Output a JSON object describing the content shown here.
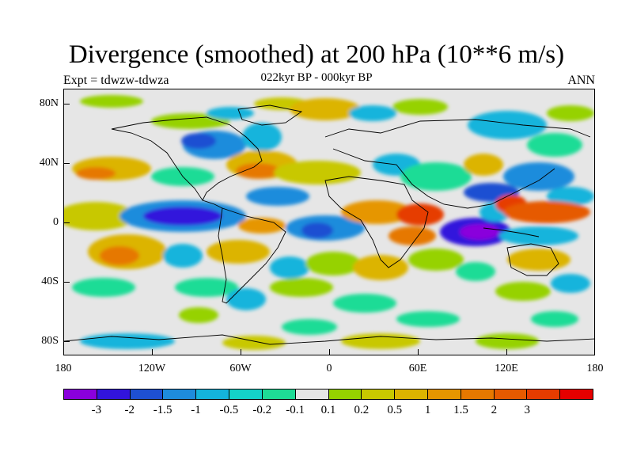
{
  "title": "Divergence (smoothed) at 200 hPa (10**6 m/s)",
  "subtitle": "022kyr BP - 000kyr BP",
  "left_label": "Expt = tdwzw-tdwza",
  "right_label": "ANN",
  "map": {
    "projection": "cylindrical-equidistant",
    "lon_range": [
      -180,
      180
    ],
    "lat_range": [
      -90,
      90
    ],
    "background_color": "#e6e6e6"
  },
  "axes": {
    "y_ticks": [
      {
        "label": "80N",
        "lat": 80
      },
      {
        "label": "40N",
        "lat": 40
      },
      {
        "label": "0",
        "lat": 0
      },
      {
        "label": "40S",
        "lat": -40
      },
      {
        "label": "80S",
        "lat": -80
      }
    ],
    "x_ticks": [
      {
        "label": "180",
        "lon": -180
      },
      {
        "label": "120W",
        "lon": -120
      },
      {
        "label": "60W",
        "lon": -60
      },
      {
        "label": "0",
        "lon": 0
      },
      {
        "label": "60E",
        "lon": 60
      },
      {
        "label": "120E",
        "lon": 120
      },
      {
        "label": "180",
        "lon": 180
      }
    ]
  },
  "colorbar": {
    "colors": [
      "#8a00dc",
      "#3214dc",
      "#1e50d2",
      "#1e8cdc",
      "#14b4dc",
      "#14d2c8",
      "#1edc96",
      "#e6e6e6",
      "#96d200",
      "#c8c800",
      "#dcb400",
      "#e69600",
      "#e67800",
      "#e65a00",
      "#e63c00",
      "#e60000"
    ],
    "labels": [
      "-3",
      "-2",
      "-1.5",
      "-1",
      "-0.5",
      "-0.2",
      "-0.1",
      "0.1",
      "0.2",
      "0.5",
      "1",
      "1.5",
      "2",
      "3"
    ]
  }
}
